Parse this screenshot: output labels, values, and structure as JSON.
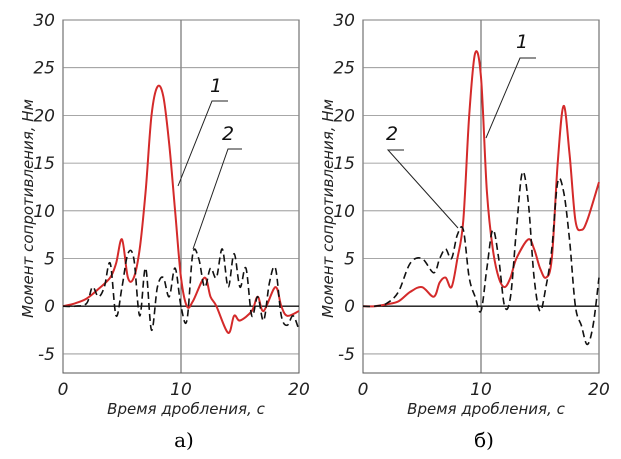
{
  "chart_data": [
    {
      "type": "line",
      "panel_label": "а)",
      "xlabel": "Время дробления, с",
      "ylabel": "Момент сопротивления, Нм",
      "xlim": [
        0,
        20
      ],
      "ylim": [
        -7,
        30
      ],
      "xticks": [
        0,
        10,
        20
      ],
      "yticks": [
        -5,
        0,
        5,
        10,
        15,
        20,
        25,
        30
      ],
      "grid": true,
      "series": [
        {
          "name": "1",
          "color": "#d42a2a",
          "style": "solid",
          "x": [
            0,
            1,
            2,
            3,
            4,
            4.5,
            5,
            5.5,
            6,
            6.5,
            7,
            7.5,
            8,
            8.5,
            9,
            9.5,
            10,
            10.5,
            11,
            12,
            12.5,
            13,
            14,
            14.5,
            15,
            16,
            16.5,
            17,
            18,
            18.5,
            19,
            20
          ],
          "y": [
            0,
            0.3,
            0.8,
            1.8,
            3,
            4.5,
            7,
            3,
            3,
            6,
            12,
            20,
            23,
            22,
            17,
            10,
            3,
            0,
            0.5,
            3,
            1,
            0,
            -2.8,
            -1,
            -1.5,
            -0.5,
            1,
            -0.5,
            2,
            0,
            -1,
            -0.5
          ]
        },
        {
          "name": "2",
          "color": "#111111",
          "style": "dashed",
          "x": [
            0,
            1,
            2,
            2.5,
            3,
            3.5,
            4,
            4.5,
            5,
            5.5,
            6,
            6.5,
            7,
            7.5,
            8,
            8.5,
            9,
            9.5,
            10,
            10.5,
            11,
            11.5,
            12,
            12.5,
            13,
            13.5,
            14,
            14.5,
            15,
            15.5,
            16,
            16.5,
            17,
            17.5,
            18,
            18.5,
            19,
            19.5,
            20
          ],
          "y": [
            0,
            0,
            0.3,
            2,
            1,
            2,
            4.5,
            -1,
            2,
            5.5,
            5,
            -1,
            4,
            -2.5,
            2,
            3,
            1,
            4,
            0,
            -1.5,
            5.5,
            5,
            2,
            4,
            3,
            6,
            2,
            5.5,
            2,
            4,
            -1,
            1,
            -1.5,
            2.5,
            4,
            -1,
            -2,
            -1,
            -2.5
          ]
        }
      ]
    },
    {
      "type": "line",
      "panel_label": "б)",
      "xlabel": "Время дробления, с",
      "ylabel": "Момент сопротивления, Нм",
      "xlim": [
        0,
        20
      ],
      "ylim": [
        -7,
        30
      ],
      "xticks": [
        0,
        10,
        20
      ],
      "yticks": [
        -5,
        0,
        5,
        10,
        15,
        20,
        25,
        30
      ],
      "grid": true,
      "series": [
        {
          "name": "1",
          "color": "#d42a2a",
          "style": "solid",
          "x": [
            0,
            1,
            2,
            3,
            4,
            5,
            6,
            6.5,
            7,
            7.5,
            8,
            8.5,
            9,
            9.5,
            10,
            10.5,
            11,
            11.5,
            12,
            12.5,
            13,
            14,
            14.5,
            15,
            15.5,
            16,
            16.5,
            17,
            17.5,
            18,
            18.5,
            19,
            20
          ],
          "y": [
            0,
            0,
            0.2,
            0.5,
            1.5,
            2,
            1,
            2.5,
            3,
            2,
            5,
            9,
            20,
            26.5,
            24,
            12,
            6,
            3,
            2,
            3,
            5,
            7,
            6,
            4,
            3,
            5,
            15,
            21,
            16,
            9,
            8,
            9,
            13
          ]
        },
        {
          "name": "2",
          "color": "#111111",
          "style": "dashed",
          "x": [
            0,
            1,
            2,
            3,
            4,
            5,
            6,
            6.5,
            7,
            7.5,
            8,
            8.5,
            9,
            9.5,
            10,
            10.5,
            11,
            11.5,
            12,
            12.5,
            13,
            13.5,
            14,
            14.5,
            15,
            15.5,
            16,
            16.5,
            17,
            17.5,
            18,
            18.5,
            19,
            19.5,
            20
          ],
          "y": [
            0,
            0,
            0.3,
            1.5,
            4.5,
            5,
            3.5,
            5,
            6,
            5,
            7.5,
            8,
            3,
            1,
            -0.5,
            4,
            8,
            5,
            0,
            1,
            8,
            14,
            11,
            3,
            -0.5,
            2,
            6,
            13,
            12,
            7,
            0,
            -2,
            -4,
            -2,
            3
          ]
        }
      ]
    }
  ]
}
